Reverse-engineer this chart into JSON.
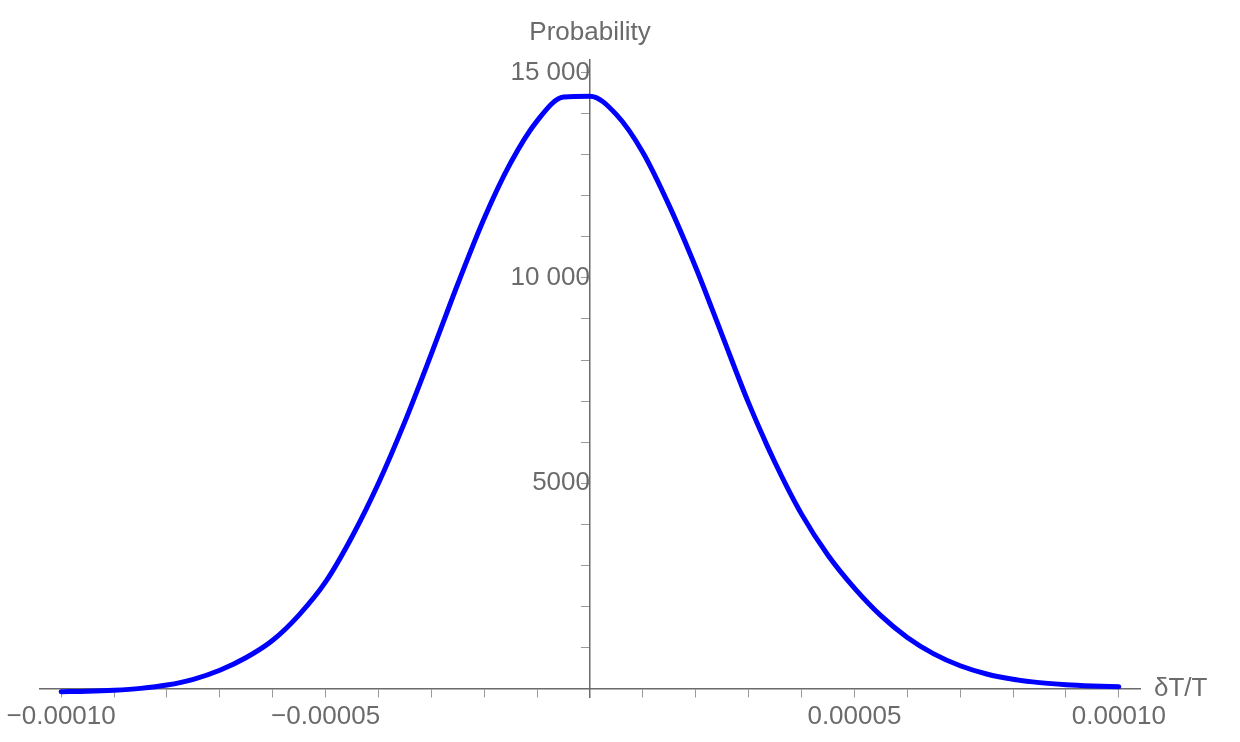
{
  "chart_data": {
    "type": "line",
    "ylabel": "Probability",
    "xlabel": "δT/T",
    "x": [
      -0.0001,
      -9.5e-05,
      -9e-05,
      -8.5e-05,
      -8e-05,
      -7.5e-05,
      -7e-05,
      -6.5e-05,
      -6e-05,
      -5.5e-05,
      -5e-05,
      -4.5e-05,
      -4e-05,
      -3.5e-05,
      -3e-05,
      -2.5e-05,
      -2e-05,
      -1.5e-05,
      -1e-05,
      -5e-06,
      0,
      5e-06,
      1e-05,
      1.5e-05,
      2e-05,
      2.5e-05,
      3e-05,
      3.5e-05,
      4e-05,
      4.5e-05,
      5e-05,
      5.5e-05,
      6e-05,
      6.5e-05,
      7e-05,
      7.5e-05,
      8e-05,
      8.5e-05,
      9e-05,
      9.5e-05,
      0.0001
    ],
    "series": [
      {
        "color": "#0000ff",
        "values": [
          -70,
          -60,
          -35,
          10,
          90,
          230,
          450,
          760,
          1180,
          1800,
          2600,
          3700,
          5000,
          6500,
          8150,
          9850,
          11450,
          12800,
          13820,
          14400,
          14420,
          13970,
          13050,
          11750,
          10250,
          8600,
          6950,
          5500,
          4250,
          3250,
          2450,
          1780,
          1250,
          850,
          560,
          360,
          230,
          150,
          100,
          70,
          50
        ]
      }
    ],
    "xlim": [
      -0.000104,
      0.000104
    ],
    "ylim": [
      -200,
      15300
    ],
    "xticks": [
      {
        "value": -0.0001,
        "label": "−0.00010"
      },
      {
        "value": -9e-05,
        "label": null
      },
      {
        "value": -8e-05,
        "label": null
      },
      {
        "value": -7e-05,
        "label": null
      },
      {
        "value": -6e-05,
        "label": null
      },
      {
        "value": -5e-05,
        "label": "−0.00005"
      },
      {
        "value": -4e-05,
        "label": null
      },
      {
        "value": -3e-05,
        "label": null
      },
      {
        "value": -2e-05,
        "label": null
      },
      {
        "value": -1e-05,
        "label": null
      },
      {
        "value": 1e-05,
        "label": null
      },
      {
        "value": 2e-05,
        "label": null
      },
      {
        "value": 3e-05,
        "label": null
      },
      {
        "value": 4e-05,
        "label": null
      },
      {
        "value": 5e-05,
        "label": "0.00005"
      },
      {
        "value": 6e-05,
        "label": null
      },
      {
        "value": 7e-05,
        "label": null
      },
      {
        "value": 8e-05,
        "label": null
      },
      {
        "value": 9e-05,
        "label": null
      },
      {
        "value": 0.0001,
        "label": "0.00010"
      }
    ],
    "yticks": [
      {
        "value": 1000,
        "label": null
      },
      {
        "value": 2000,
        "label": null
      },
      {
        "value": 3000,
        "label": null
      },
      {
        "value": 4000,
        "label": null
      },
      5000,
      {
        "value": 6000,
        "label": null
      },
      {
        "value": 7000,
        "label": null
      },
      {
        "value": 8000,
        "label": null
      },
      {
        "value": 9000,
        "label": null
      },
      {
        "value": 10000,
        "label": "10 000"
      },
      {
        "value": 11000,
        "label": null
      },
      {
        "value": 12000,
        "label": null
      },
      {
        "value": 13000,
        "label": null
      },
      {
        "value": 14000,
        "label": null
      },
      {
        "value": 15000,
        "label": "15 000"
      }
    ],
    "grid": false,
    "legend": false,
    "marker": "none",
    "line_style": "solid"
  }
}
